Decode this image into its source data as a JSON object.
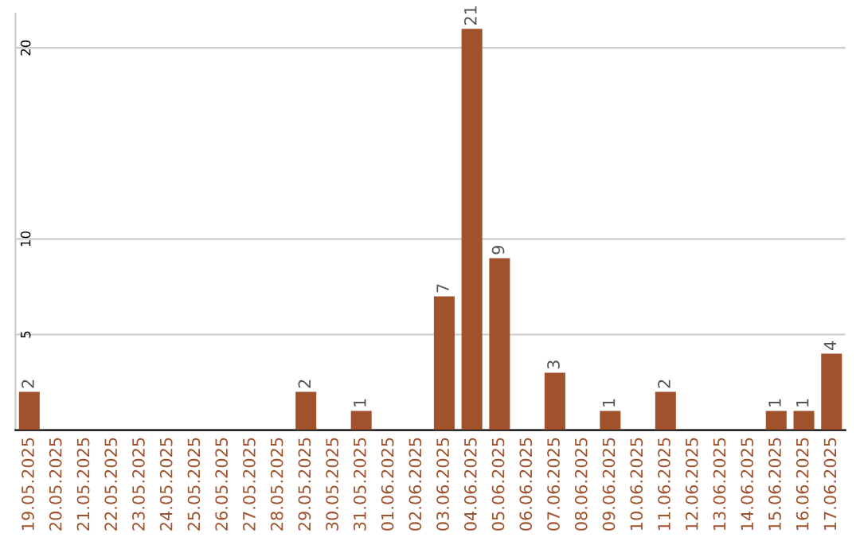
{
  "chart_data": {
    "type": "bar",
    "categories": [
      "19.05.2025",
      "20.05.2025",
      "21.05.2025",
      "22.05.2025",
      "23.05.2025",
      "24.05.2025",
      "25.05.2025",
      "26.05.2025",
      "27.05.2025",
      "28.05.2025",
      "29.05.2025",
      "30.05.2025",
      "31.05.2025",
      "01.06.2025",
      "02.06.2025",
      "03.06.2025",
      "04.06.2025",
      "05.06.2025",
      "06.06.2025",
      "07.06.2025",
      "08.06.2025",
      "09.06.2025",
      "10.06.2025",
      "11.06.2025",
      "12.06.2025",
      "13.06.2025",
      "14.06.2025",
      "15.06.2025",
      "16.06.2025",
      "17.06.2025"
    ],
    "values": [
      2,
      0,
      0,
      0,
      0,
      0,
      0,
      0,
      0,
      0,
      2,
      0,
      1,
      0,
      0,
      7,
      21,
      9,
      0,
      3,
      0,
      1,
      0,
      2,
      0,
      0,
      0,
      1,
      1,
      4
    ],
    "value_labels": [
      "2",
      null,
      null,
      null,
      null,
      null,
      null,
      null,
      null,
      null,
      "2",
      null,
      "1",
      null,
      null,
      "7",
      "21",
      "9",
      null,
      "3",
      null,
      "1",
      null,
      "2",
      null,
      null,
      null,
      "1",
      "1",
      "4"
    ],
    "color": "#a0522d",
    "ylim": [
      0,
      21.8
    ],
    "yticks": [
      5,
      10,
      20
    ],
    "grid": "y"
  }
}
